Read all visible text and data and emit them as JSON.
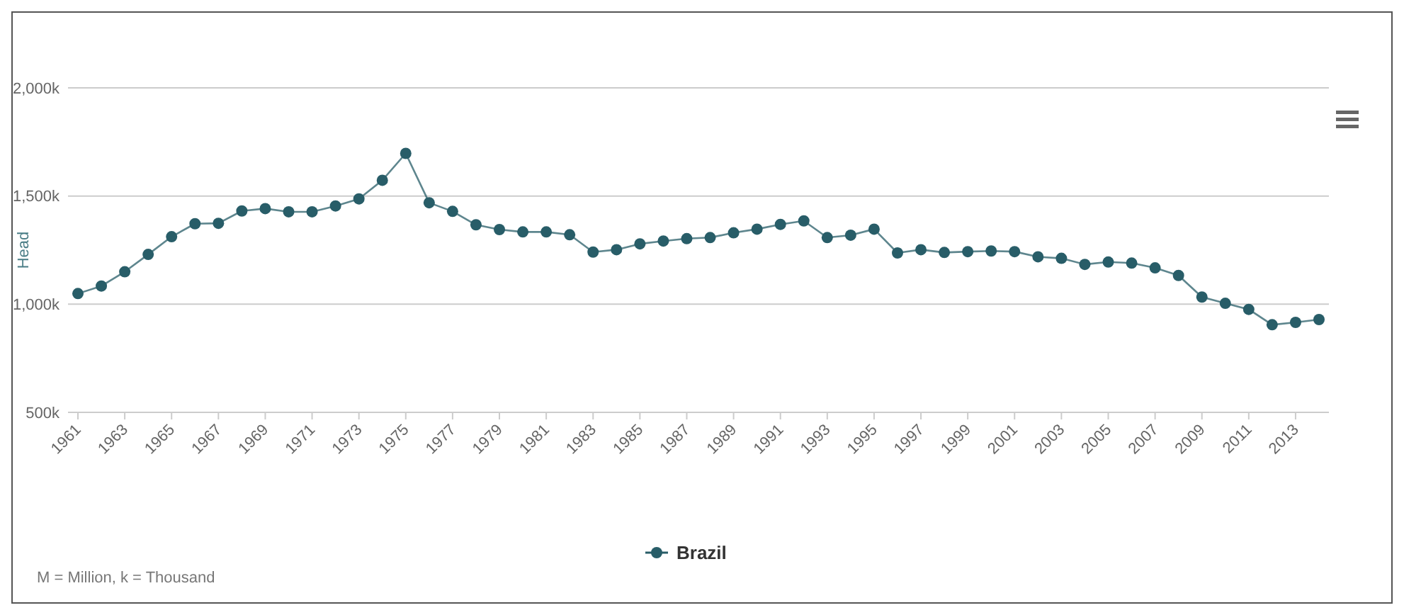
{
  "chart_data": {
    "type": "line",
    "ylabel": "Head",
    "categories": [
      "1961",
      null,
      "1963",
      null,
      "1965",
      null,
      "1967",
      null,
      "1969",
      null,
      "1971",
      null,
      "1973",
      null,
      "1975",
      null,
      "1977",
      null,
      "1979",
      null,
      "1981",
      null,
      "1983",
      null,
      "1985",
      null,
      "1987",
      null,
      "1989",
      null,
      "1991",
      null,
      "1993",
      null,
      "1995",
      null,
      "1997",
      null,
      "1999",
      null,
      "2001",
      null,
      "2003",
      null,
      "2005",
      null,
      "2007",
      null,
      "2009",
      null,
      "2011",
      null,
      "2013",
      null
    ],
    "series": [
      {
        "name": "Brazil",
        "color": "#285d68",
        "values": [
          1049,
          1084,
          1150,
          1230,
          1312,
          1372,
          1374,
          1431,
          1442,
          1427,
          1427,
          1454,
          1487,
          1573,
          1697,
          1469,
          1429,
          1367,
          1345,
          1334,
          1334,
          1321,
          1241,
          1252,
          1279,
          1292,
          1303,
          1308,
          1330,
          1347,
          1369,
          1385,
          1308,
          1319,
          1347,
          1237,
          1252,
          1239,
          1243,
          1246,
          1243,
          1219,
          1212,
          1184,
          1195,
          1190,
          1168,
          1133,
          1033,
          1004,
          976,
          905,
          916,
          929
        ]
      }
    ],
    "ylim": [
      500,
      2000
    ],
    "yticks": [
      {
        "value": 500,
        "label": "500k"
      },
      {
        "value": 1000,
        "label": "1,000k"
      },
      {
        "value": 1500,
        "label": "1,500k"
      },
      {
        "value": 2000,
        "label": "2,000k"
      }
    ],
    "grid": "y",
    "marker": "circle",
    "line_style": "solid",
    "legend": "bottom",
    "annotations": [
      "M = Million, k = Thousand"
    ]
  }
}
